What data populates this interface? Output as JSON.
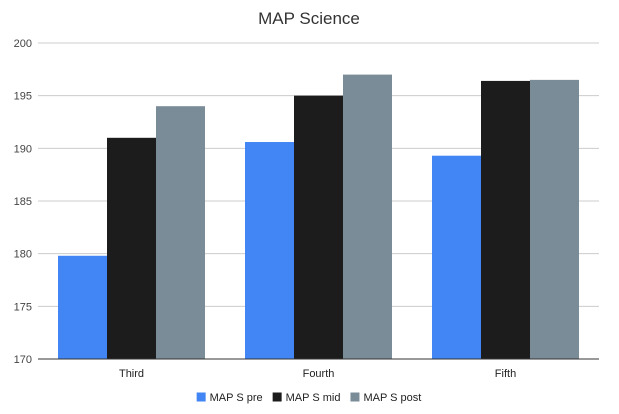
{
  "chart_data": {
    "type": "bar",
    "title": "MAP Science",
    "xlabel": "",
    "ylabel": "",
    "categories": [
      "Third",
      "Fourth",
      "Fifth"
    ],
    "series": [
      {
        "name": "MAP S pre",
        "color": "#4285f4",
        "values": [
          179.8,
          190.6,
          189.3
        ]
      },
      {
        "name": "MAP S mid",
        "color": "#1c1c1c",
        "values": [
          191.0,
          195.0,
          196.4
        ]
      },
      {
        "name": "MAP S post",
        "color": "#7b8c99",
        "values": [
          194.0,
          197.0,
          196.5
        ]
      }
    ],
    "ylim": [
      170,
      200
    ],
    "yticks": [
      "170",
      "175",
      "180",
      "185",
      "190",
      "195",
      "200"
    ],
    "grid": true,
    "legend": "bottom"
  }
}
